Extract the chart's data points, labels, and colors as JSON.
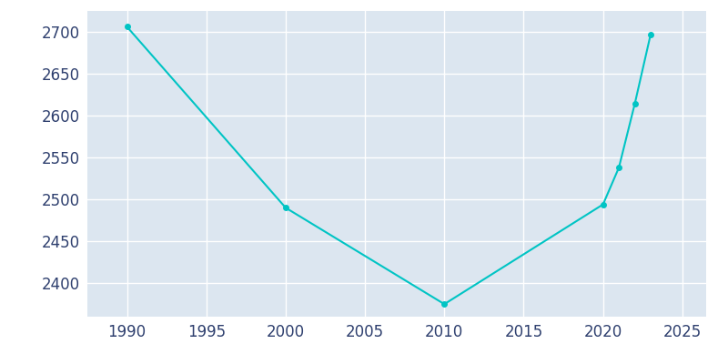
{
  "years": [
    1990,
    2000,
    2010,
    2020,
    2021,
    2022,
    2023
  ],
  "population": [
    2706,
    2490,
    2375,
    2494,
    2538,
    2614,
    2697
  ],
  "line_color": "#00C4C4",
  "marker": "o",
  "marker_size": 4,
  "line_width": 1.5,
  "ax_bg_color": "#dce6f0",
  "fig_bg_color": "#ffffff",
  "tick_color": "#2e3f6e",
  "grid_color": "#ffffff",
  "xlim": [
    1987.5,
    2026.5
  ],
  "ylim": [
    2360,
    2725
  ],
  "xticks": [
    1990,
    1995,
    2000,
    2005,
    2010,
    2015,
    2020,
    2025
  ],
  "yticks": [
    2400,
    2450,
    2500,
    2550,
    2600,
    2650,
    2700
  ],
  "tick_fontsize": 12
}
